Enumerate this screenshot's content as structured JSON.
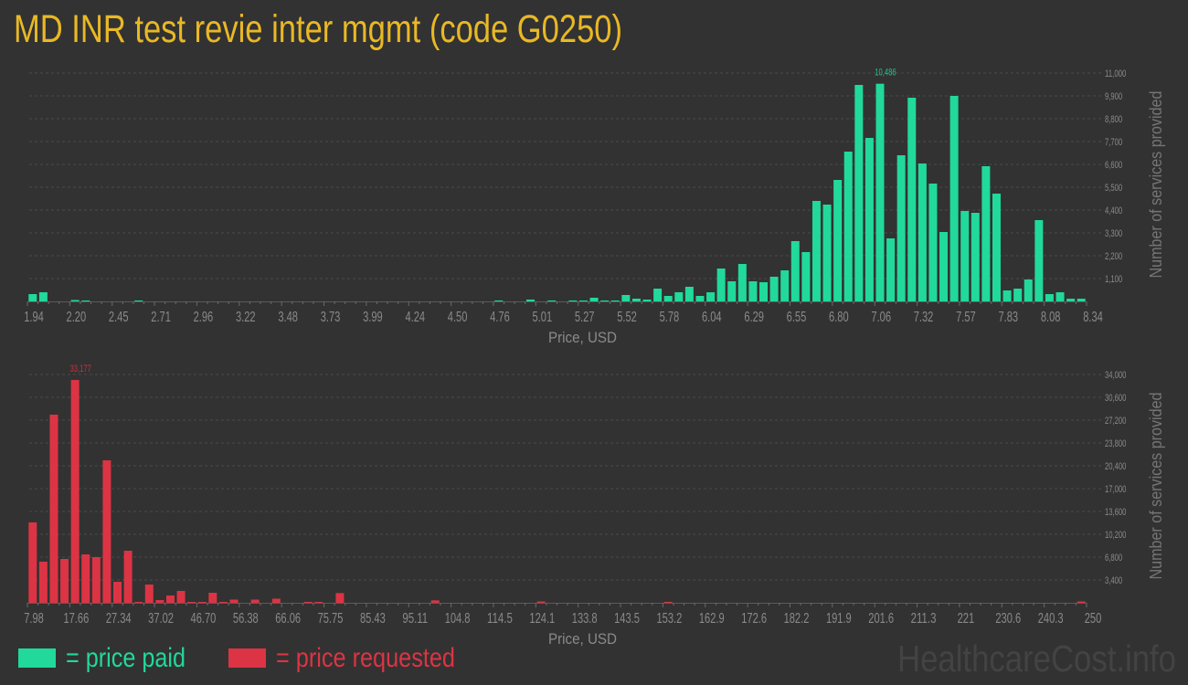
{
  "title": "MD INR test revie inter mgmt (code G0250)",
  "legend": {
    "paid_label": "= price paid",
    "requested_label": "= price requested"
  },
  "watermark": "HealthcareCost.info",
  "colors": {
    "background": "#323232",
    "title": "#e9b825",
    "paid": "#21d99b",
    "requested": "#dc3444"
  },
  "chart_data": [
    {
      "type": "bar",
      "series_name": "price paid",
      "color_key": "paid",
      "xlabel": "Price, USD",
      "ylabel": "Number of services provided",
      "xlim": [
        1.94,
        8.34
      ],
      "bin_start": 1.94,
      "bin_width": 0.064,
      "x_tick_labels": [
        "1.94",
        "2.20",
        "2.45",
        "2.71",
        "2.96",
        "3.22",
        "3.48",
        "3.73",
        "3.99",
        "4.24",
        "4.50",
        "4.76",
        "5.01",
        "5.27",
        "5.52",
        "5.78",
        "6.04",
        "6.29",
        "6.55",
        "6.80",
        "7.06",
        "7.32",
        "7.57",
        "7.83",
        "8.08",
        "8.34"
      ],
      "ylim": [
        0,
        11000
      ],
      "y_ticks": [
        1100,
        2200,
        3300,
        4400,
        5500,
        6600,
        7700,
        8800,
        9900,
        11000
      ],
      "y_tick_labels": [
        "1,100",
        "2,200",
        "3,300",
        "4,400",
        "5,500",
        "6,600",
        "7,700",
        "8,800",
        "9,900",
        "11,000"
      ],
      "grid": true,
      "legend_position": "bottom-left",
      "peak_index": 80,
      "peak_label": "10,486",
      "values": [
        352,
        440,
        0,
        0,
        66,
        22,
        0,
        0,
        0,
        0,
        22,
        0,
        0,
        0,
        0,
        0,
        0,
        0,
        0,
        0,
        0,
        0,
        0,
        0,
        0,
        0,
        0,
        0,
        0,
        0,
        0,
        0,
        0,
        0,
        0,
        0,
        0,
        0,
        0,
        0,
        0,
        0,
        0,
        0,
        22,
        0,
        0,
        88,
        0,
        22,
        0,
        44,
        44,
        176,
        22,
        22,
        308,
        132,
        88,
        616,
        264,
        440,
        704,
        264,
        440,
        1584,
        968,
        1804,
        968,
        924,
        1188,
        1496,
        2904,
        2376,
        4840,
        4664,
        5852,
        7216,
        10428,
        7876,
        10486,
        3036,
        7040,
        9812,
        6644,
        5676,
        3344,
        9900,
        4356,
        4268,
        6512,
        5192,
        528,
        616,
        1056,
        3916,
        352,
        440,
        130,
        130
      ]
    },
    {
      "type": "bar",
      "series_name": "price requested",
      "color_key": "requested",
      "xlabel": "Price, USD",
      "ylabel": "Number of services provided",
      "xlim": [
        7.98,
        250
      ],
      "bin_start": 7.98,
      "bin_width": 2.42,
      "x_tick_labels": [
        "7.98",
        "17.66",
        "27.34",
        "37.02",
        "46.70",
        "56.38",
        "66.06",
        "75.75",
        "85.43",
        "95.11",
        "104.8",
        "114.5",
        "124.1",
        "133.8",
        "143.5",
        "153.2",
        "162.9",
        "172.6",
        "182.2",
        "191.9",
        "201.6",
        "211.3",
        "221",
        "230.6",
        "240.3",
        "250"
      ],
      "ylim": [
        0,
        34000
      ],
      "y_ticks": [
        3400,
        6800,
        10200,
        13600,
        17000,
        20400,
        23800,
        27200,
        30600,
        34000
      ],
      "y_tick_labels": [
        "3,400",
        "6,800",
        "10,200",
        "13,600",
        "17,000",
        "20,400",
        "23,800",
        "27,200",
        "30,600",
        "34,000"
      ],
      "grid": true,
      "legend_position": "bottom-left",
      "peak_index": 4,
      "peak_label": "33,177",
      "values": [
        11968,
        6120,
        28016,
        6528,
        33177,
        7208,
        6800,
        21216,
        3128,
        7752,
        40,
        2720,
        408,
        1088,
        1768,
        100,
        100,
        1496,
        100,
        476,
        0,
        476,
        0,
        612,
        0,
        0,
        100,
        100,
        0,
        1450,
        0,
        0,
        0,
        0,
        0,
        0,
        0,
        0,
        360,
        0,
        0,
        0,
        0,
        0,
        0,
        0,
        0,
        0,
        200,
        0,
        0,
        0,
        0,
        0,
        0,
        0,
        0,
        0,
        0,
        0,
        80,
        0,
        0,
        0,
        0,
        0,
        0,
        0,
        0,
        0,
        0,
        0,
        0,
        0,
        0,
        0,
        0,
        0,
        0,
        0,
        0,
        0,
        0,
        0,
        0,
        0,
        0,
        0,
        0,
        0,
        0,
        0,
        0,
        0,
        0,
        0,
        0,
        0,
        0,
        200
      ]
    }
  ]
}
